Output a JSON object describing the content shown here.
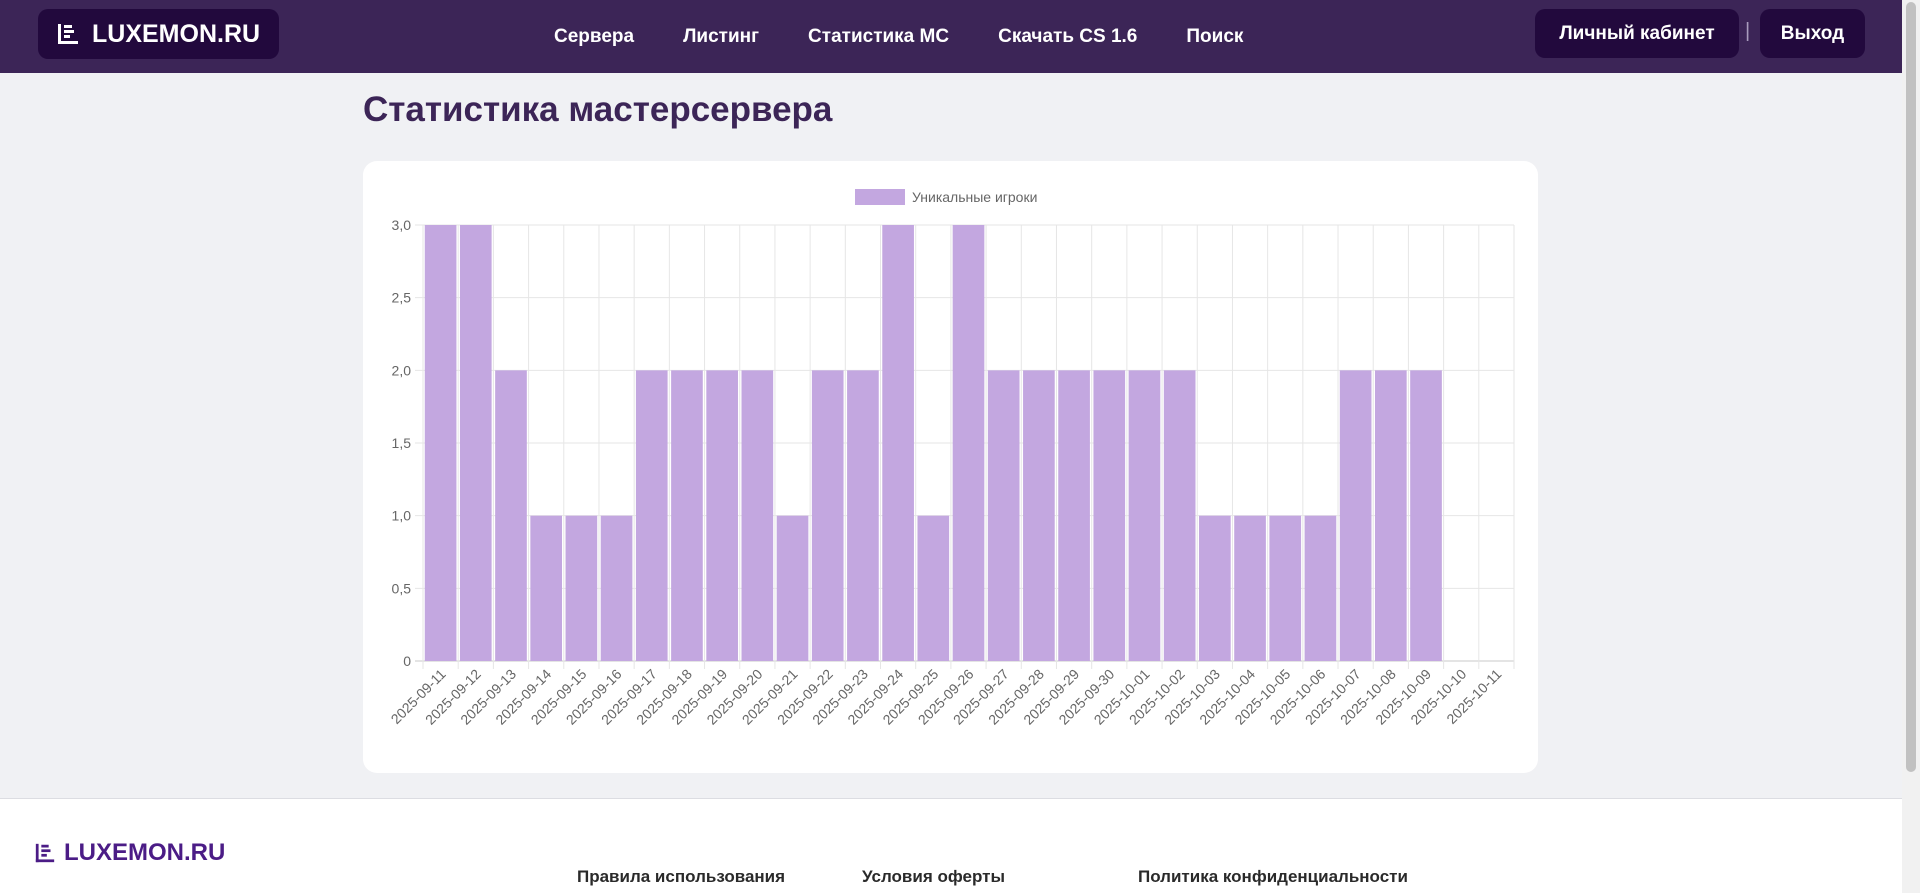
{
  "header": {
    "logo": "LUXEMON.RU",
    "nav": [
      "Сервера",
      "Листинг",
      "Статистика МС",
      "Скачать CS 1.6",
      "Поиск"
    ],
    "account": "Личный кабинет",
    "separator": "|",
    "logout": "Выход"
  },
  "page": {
    "title": "Статистика мастерсервера"
  },
  "footer": {
    "logo": "LUXEMON.RU",
    "links": [
      "Правила использования",
      "Условия оферты",
      "Политика конфиденциальности"
    ]
  },
  "colors": {
    "bar": "#c3a7e0",
    "header_bg": "#3c2557",
    "button_bg": "#22093d"
  },
  "chart_data": {
    "type": "bar",
    "legend": "Уникальные игроки",
    "legend_position": "top-center",
    "grid": true,
    "ylim": [
      0,
      3
    ],
    "y_ticks": [
      "0",
      "0,5",
      "1,0",
      "1,5",
      "2,0",
      "2,5",
      "3,0"
    ],
    "categories": [
      "2025-09-11",
      "2025-09-12",
      "2025-09-13",
      "2025-09-14",
      "2025-09-15",
      "2025-09-16",
      "2025-09-17",
      "2025-09-18",
      "2025-09-19",
      "2025-09-20",
      "2025-09-21",
      "2025-09-22",
      "2025-09-23",
      "2025-09-24",
      "2025-09-25",
      "2025-09-26",
      "2025-09-27",
      "2025-09-28",
      "2025-09-29",
      "2025-09-30",
      "2025-10-01",
      "2025-10-02",
      "2025-10-03",
      "2025-10-04",
      "2025-10-05",
      "2025-10-06",
      "2025-10-07",
      "2025-10-08",
      "2025-10-09",
      "2025-10-10",
      "2025-10-11"
    ],
    "values": [
      3,
      3,
      2,
      1,
      1,
      1,
      2,
      2,
      2,
      2,
      1,
      2,
      2,
      3,
      1,
      3,
      2,
      2,
      2,
      2,
      2,
      2,
      1,
      1,
      1,
      1,
      2,
      2,
      2,
      0,
      0
    ]
  }
}
